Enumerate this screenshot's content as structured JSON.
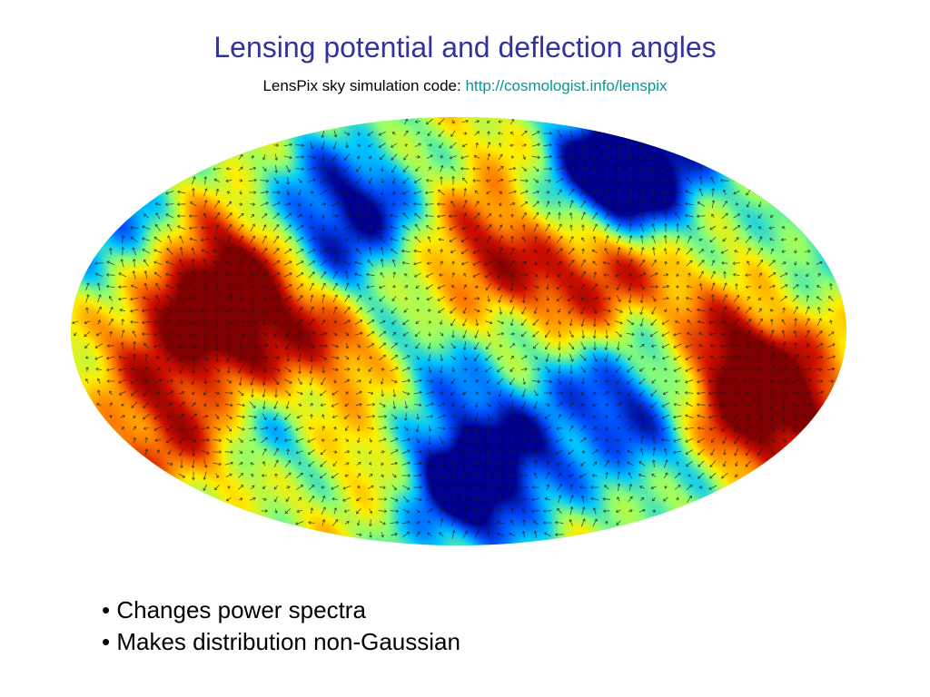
{
  "slide": {
    "title": "Lensing potential and deflection angles",
    "subtitle_prefix": "LensPix sky simulation code: ",
    "subtitle_link": "http://cosmologist.info/lenspix",
    "bullets": [
      "• Changes power spectra",
      "• Makes distribution non-Gaussian"
    ]
  },
  "colors": {
    "title": "#333399",
    "link": "#009999",
    "map_background": "#8ee05a",
    "arrows": "#1a1a1a",
    "colormap": [
      "#00008f",
      "#0050ff",
      "#00c8ff",
      "#8fff70",
      "#ffee00",
      "#ff8000",
      "#d01000",
      "#800000"
    ]
  },
  "sky_map": {
    "projection": "mollweide",
    "field": "lensing potential",
    "overlay": "deflection-angle arrows",
    "features": [
      {
        "lon": -165,
        "lat": 30,
        "value": -0.8
      },
      {
        "lon": -140,
        "lat": 5,
        "value": 0.6
      },
      {
        "lon": -150,
        "lat": -35,
        "value": 0.7
      },
      {
        "lon": -120,
        "lat": 22,
        "value": 0.8
      },
      {
        "lon": -100,
        "lat": 5,
        "value": 0.85
      },
      {
        "lon": -90,
        "lat": -30,
        "value": -0.55
      },
      {
        "lon": -75,
        "lat": 45,
        "value": -0.7
      },
      {
        "lon": -60,
        "lat": -5,
        "value": 0.85
      },
      {
        "lon": -50,
        "lat": 18,
        "value": -0.6
      },
      {
        "lon": -45,
        "lat": -45,
        "value": 0.45
      },
      {
        "lon": -30,
        "lat": 38,
        "value": -0.7
      },
      {
        "lon": -20,
        "lat": 25,
        "value": 0.75
      },
      {
        "lon": -15,
        "lat": -8,
        "value": -0.5
      },
      {
        "lon": -5,
        "lat": -55,
        "value": -0.75
      },
      {
        "lon": 15,
        "lat": -50,
        "value": -0.85
      },
      {
        "lon": 20,
        "lat": 50,
        "value": 0.35
      },
      {
        "lon": 28,
        "lat": 22,
        "value": 0.9
      },
      {
        "lon": 38,
        "lat": 10,
        "value": -0.6
      },
      {
        "lon": 48,
        "lat": 35,
        "value": -0.4
      },
      {
        "lon": 52,
        "lat": 5,
        "value": 0.45
      },
      {
        "lon": 55,
        "lat": -30,
        "value": -0.35
      },
      {
        "lon": 70,
        "lat": 25,
        "value": 1.0
      },
      {
        "lon": 80,
        "lat": -15,
        "value": -0.6
      },
      {
        "lon": 100,
        "lat": 55,
        "value": -1.0
      },
      {
        "lon": 125,
        "lat": 58,
        "value": -0.9
      },
      {
        "lon": 125,
        "lat": 5,
        "value": 0.4
      },
      {
        "lon": 140,
        "lat": -20,
        "value": 0.95
      },
      {
        "lon": 160,
        "lat": -25,
        "value": 0.7
      },
      {
        "lon": 160,
        "lat": 20,
        "value": -0.35
      },
      {
        "lon": 110,
        "lat": -40,
        "value": -0.4
      }
    ]
  }
}
